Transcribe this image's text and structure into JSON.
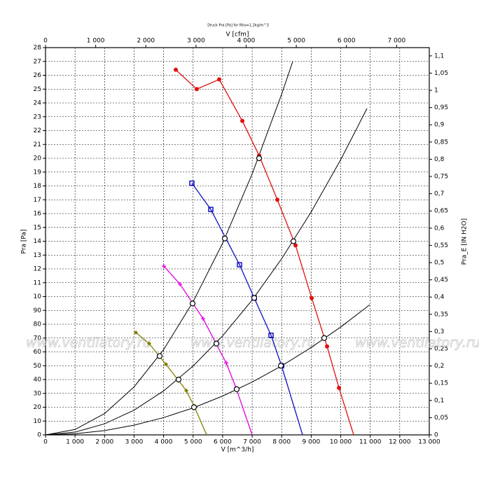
{
  "chart_data": {
    "type": "line",
    "title": "Druck Pra [Pa] for Rho=1.2kg/m^3",
    "xlabel": "V [m^3/h]",
    "x2label": "V [cfm]",
    "ylabel": "Pra [Pa]",
    "y2label": "Pra_E [IN H2O]",
    "annotations": [
      "www.ventilatory.ru",
      "www.ventilatory.ru",
      "www.ventilatory.ru"
    ],
    "xlim": [
      0,
      13000
    ],
    "xticks": [
      0,
      {
        "value": 1000,
        "label": "1 000"
      },
      {
        "value": 2000,
        "label": "2 000"
      },
      {
        "value": 3000,
        "label": "3 000"
      },
      {
        "value": 4000,
        "label": "4 000"
      },
      {
        "value": 5000,
        "label": "5 000"
      },
      {
        "value": 6000,
        "label": "6 000"
      },
      {
        "value": 7000,
        "label": "7 000"
      },
      {
        "value": 8000,
        "label": "8 000"
      },
      {
        "value": 9000,
        "label": "9 000"
      },
      {
        "value": 10000,
        "label": "10 000"
      },
      {
        "value": 11000,
        "label": "11 000"
      },
      {
        "value": 12000,
        "label": "12 000"
      },
      {
        "value": 13000,
        "label": "13 000"
      }
    ],
    "x2lim": [
      0,
      7651
    ],
    "x2ticks": [
      0,
      {
        "value": 1000,
        "label": "1 000"
      },
      {
        "value": 2000,
        "label": "2 000"
      },
      {
        "value": 3000,
        "label": "3 000"
      },
      {
        "value": 4000,
        "label": "4 000"
      },
      {
        "value": 5000,
        "label": "5 000"
      },
      {
        "value": 6000,
        "label": "6 000"
      },
      {
        "value": 7000,
        "label": "7 000"
      }
    ],
    "ylim": [
      0,
      280
    ],
    "yticks": [
      0,
      10,
      20,
      30,
      40,
      50,
      60,
      70,
      80,
      90,
      {
        "value": 100,
        "label": "10"
      },
      {
        "value": 110,
        "label": "11"
      },
      {
        "value": 120,
        "label": "12"
      },
      {
        "value": 130,
        "label": "13"
      },
      {
        "value": 140,
        "label": "14"
      },
      {
        "value": 150,
        "label": "15"
      },
      {
        "value": 160,
        "label": "16"
      },
      {
        "value": 170,
        "label": "17"
      },
      {
        "value": 180,
        "label": "18"
      },
      {
        "value": 190,
        "label": "19"
      },
      {
        "value": 200,
        "label": "20"
      },
      {
        "value": 210,
        "label": "21"
      },
      {
        "value": 220,
        "label": "22"
      },
      {
        "value": 230,
        "label": "23"
      },
      {
        "value": 240,
        "label": "24"
      },
      {
        "value": 250,
        "label": "25"
      },
      {
        "value": 260,
        "label": "26"
      },
      {
        "value": 270,
        "label": "27"
      },
      {
        "value": 280,
        "label": "28"
      }
    ],
    "y2lim": [
      0,
      1.124
    ],
    "y2ticks": [
      0,
      {
        "value": 0.05,
        "label": "0,05"
      },
      {
        "value": 0.1,
        "label": "0,1"
      },
      {
        "value": 0.15,
        "label": "0,15"
      },
      {
        "value": 0.2,
        "label": "0,2"
      },
      {
        "value": 0.25,
        "label": "0,25"
      },
      {
        "value": 0.3,
        "label": "0,3"
      },
      {
        "value": 0.35,
        "label": "0,35"
      },
      {
        "value": 0.4,
        "label": "0,4"
      },
      {
        "value": 0.45,
        "label": "0,45"
      },
      {
        "value": 0.5,
        "label": "0,5"
      },
      {
        "value": 0.55,
        "label": "0,55"
      },
      {
        "value": 0.6,
        "label": "0,6"
      },
      {
        "value": 0.65,
        "label": "0,65"
      },
      {
        "value": 0.7,
        "label": "0,7"
      },
      {
        "value": 0.75,
        "label": "0,75"
      },
      {
        "value": 0.8,
        "label": "0,8"
      },
      {
        "value": 0.85,
        "label": "0,85"
      },
      {
        "value": 0.9,
        "label": "0,9"
      },
      {
        "value": 0.95,
        "label": "0,95"
      },
      {
        "value": 1,
        "label": "1"
      },
      {
        "value": 1.05,
        "label": "1,05"
      },
      {
        "value": 1.1,
        "label": "1,1"
      }
    ],
    "grid": true,
    "series": [
      {
        "color": "#000000",
        "marker": "none",
        "x": [
          0,
          1000,
          2000,
          3000,
          4000,
          5000,
          6000,
          7000,
          8000,
          8375
        ],
        "values": [
          0,
          3.9,
          15.4,
          34.7,
          61.6,
          96.3,
          138.6,
          188.7,
          246.4,
          270
        ]
      },
      {
        "color": "#000000",
        "marker": "none",
        "x": [
          0,
          1000,
          2000,
          3000,
          4000,
          5000,
          6000,
          7000,
          8000,
          9000,
          10000,
          10890
        ],
        "values": [
          0,
          2,
          8,
          17.9,
          31.8,
          49.8,
          71.6,
          97.5,
          127.4,
          161.2,
          199,
          236
        ]
      },
      {
        "color": "#000000",
        "marker": "none",
        "x": [
          0,
          1000,
          2000,
          3000,
          4000,
          5000,
          6000,
          7000,
          8000,
          9000,
          10000,
          10985
        ],
        "values": [
          0,
          0.8,
          3.1,
          7,
          12.5,
          19.5,
          28.1,
          38.2,
          49.9,
          63.2,
          78,
          94.1
        ]
      },
      {
        "color": "#808000",
        "marker": "diamond",
        "x": [
          3060,
          3511,
          4081,
          4769,
          5030,
          5457
        ],
        "values": [
          74,
          66,
          51,
          32,
          21,
          0
        ]
      },
      {
        "color": "#e000e0",
        "marker": "cross",
        "x": [
          4009,
          4555,
          5338,
          6121,
          6453,
          6999
        ],
        "values": [
          122,
          109,
          84,
          52,
          34,
          0
        ]
      },
      {
        "color": "#1010c0",
        "marker": "square",
        "x": [
          4958,
          5599,
          6572,
          7070,
          7639,
          7995,
          8707
        ],
        "values": [
          182,
          163,
          123,
          99,
          72,
          50,
          0
        ]
      },
      {
        "color": "#e01010",
        "marker": "dot",
        "x": [
          4413,
          5124,
          5884,
          6667,
          7236,
          7853,
          8470,
          9016,
          9537,
          9941,
          10439
        ],
        "values": [
          264,
          250,
          257,
          227,
          202,
          170,
          137,
          99,
          64,
          34,
          0
        ]
      },
      {
        "color": "#000000",
        "marker": "circle",
        "line": false,
        "x": [
          3867,
          4508,
          5030,
          4982,
          5789,
          6477,
          6074,
          7070,
          7972,
          7236,
          8399,
          9442
        ],
        "values": [
          57,
          40,
          20,
          95,
          66,
          33,
          142,
          99,
          50,
          200,
          140,
          70
        ]
      }
    ]
  }
}
